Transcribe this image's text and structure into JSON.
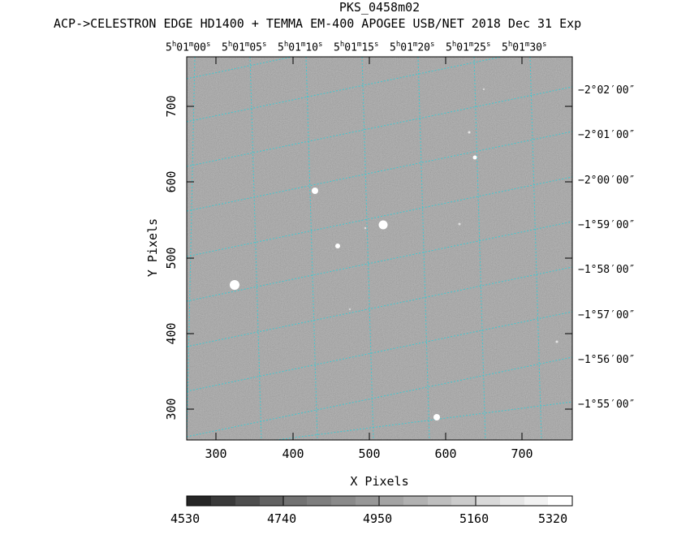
{
  "header": {
    "title": "PKS_0458m02",
    "subtitle": "ACP->CELESTRON EDGE HD1400 + TEMMA EM-400 APOGEE USB/NET   2018 Dec 31    Exp"
  },
  "axes": {
    "x_label": "X Pixels",
    "y_label": "Y Pixels",
    "x_ticks": [
      "300",
      "400",
      "500",
      "600",
      "700"
    ],
    "y_ticks": [
      "300",
      "400",
      "500",
      "600",
      "700"
    ]
  },
  "ra_labels": [
    {
      "h": "5",
      "m": "01",
      "s": "00"
    },
    {
      "h": "5",
      "m": "01",
      "s": "05"
    },
    {
      "h": "5",
      "m": "01",
      "s": "10"
    },
    {
      "h": "5",
      "m": "01",
      "s": "15"
    },
    {
      "h": "5",
      "m": "01",
      "s": "20"
    },
    {
      "h": "5",
      "m": "01",
      "s": "25"
    },
    {
      "h": "5",
      "m": "01",
      "s": "30"
    }
  ],
  "dec_labels": [
    "−2°02′00″",
    "−2°01′00″",
    "−2°00′00″",
    "−1°59′00″",
    "−1°58′00″",
    "−1°57′00″",
    "−1°56′00″",
    "−1°55′00″"
  ],
  "colorbar": {
    "labels": [
      "4530",
      "4740",
      "4950",
      "5160",
      "5320"
    ]
  },
  "colors": {
    "grid": "#40c8d0",
    "image_base": "#8a8a8a"
  }
}
